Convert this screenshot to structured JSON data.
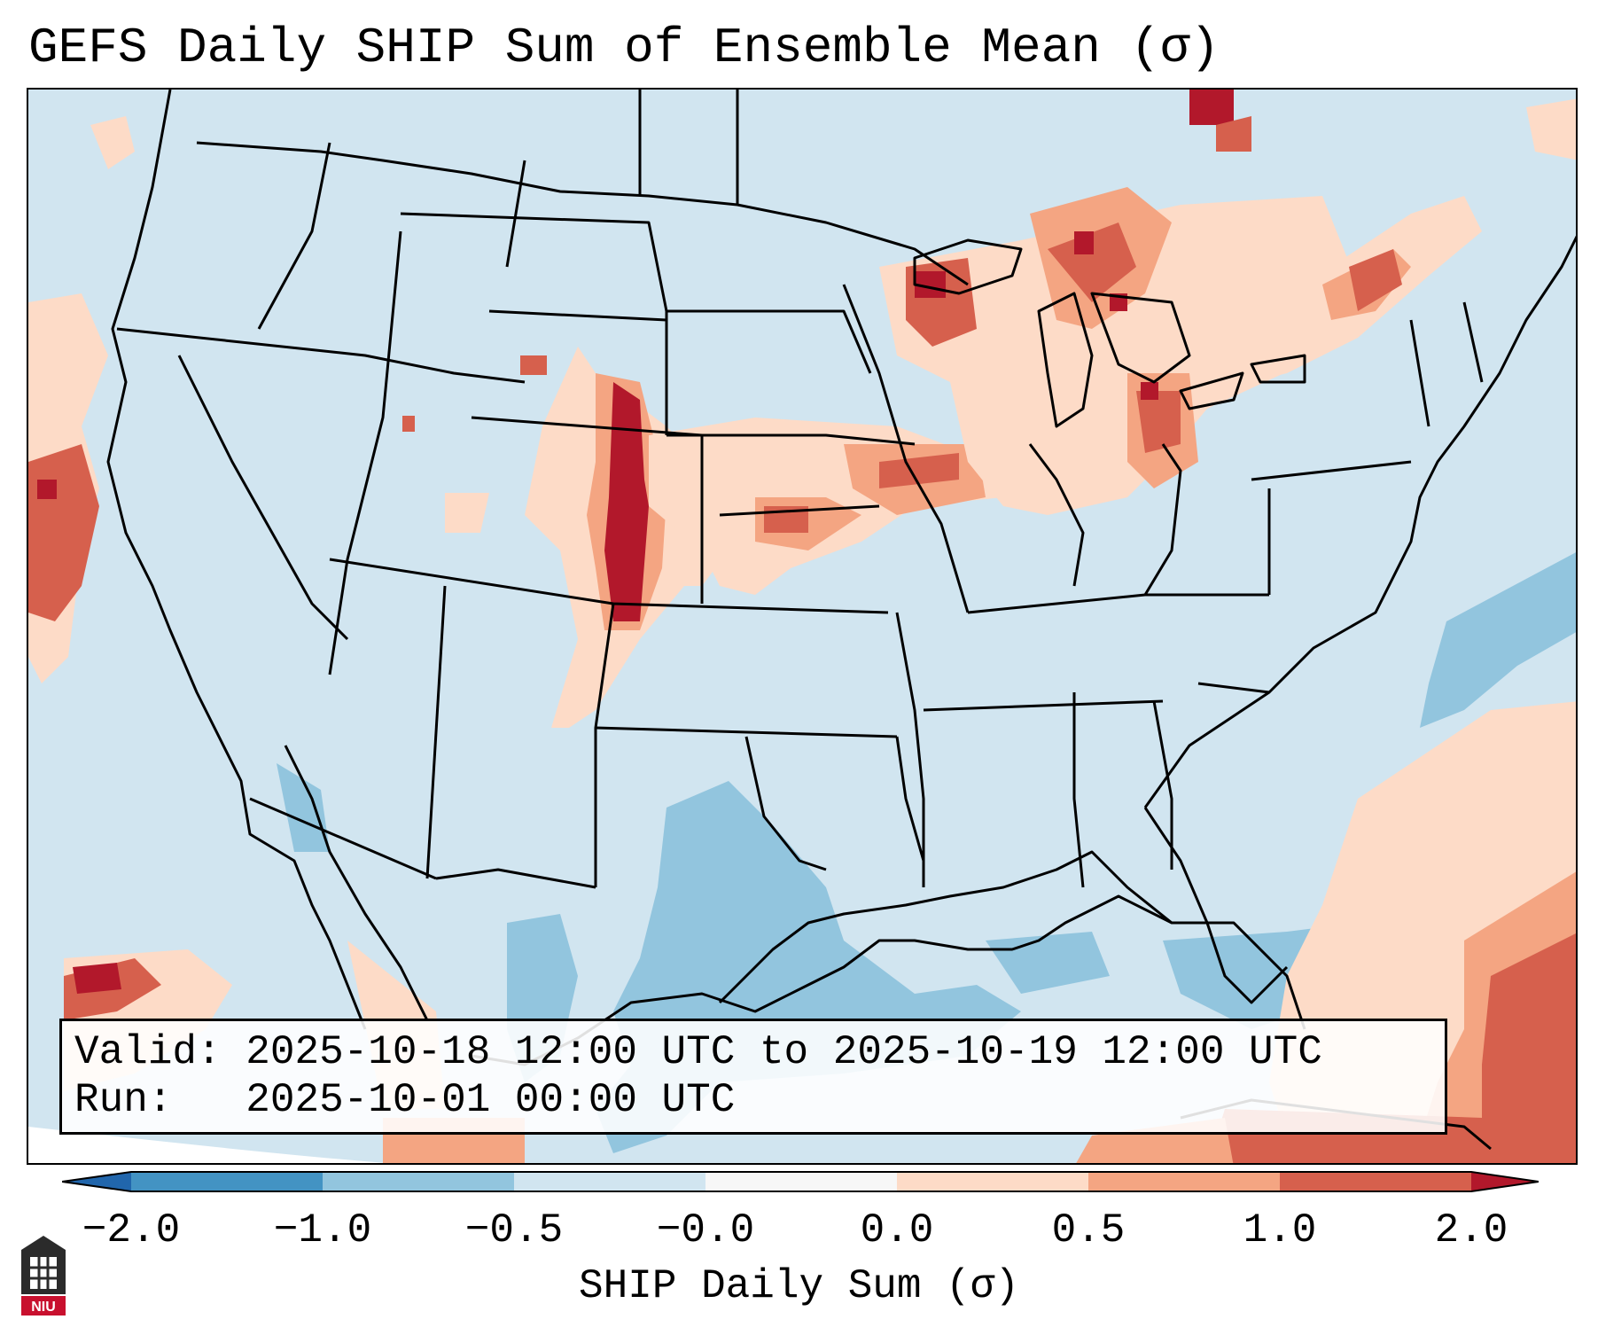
{
  "title": "GEFS Daily SHIP Sum of Ensemble Mean (σ)",
  "info": {
    "valid_label": "Valid:",
    "valid_value": "2025-10-18 12:00 UTC to 2025-10-19 12:00 UTC",
    "run_label": "Run:",
    "run_value": "2025-10-01 00:00 UTC"
  },
  "colorbar": {
    "label": "SHIP Daily Sum (σ)",
    "ticks": [
      "−2.0",
      "−1.0",
      "−0.5",
      "−0.0",
      "0.0",
      "0.5",
      "1.0",
      "2.0"
    ],
    "colors": {
      "below_min": "#2166ac",
      "n2_n1": "#4393c3",
      "n1_n05": "#92c5de",
      "n05_0": "#d1e5f0",
      "zero": "#f7f7f7",
      "p0_05": "#fddbc7",
      "p05_1": "#f4a582",
      "p1_2": "#d6604d",
      "above_max": "#b2182b"
    }
  },
  "logo": {
    "text": "NIU",
    "name": "niu-logo-icon"
  }
}
